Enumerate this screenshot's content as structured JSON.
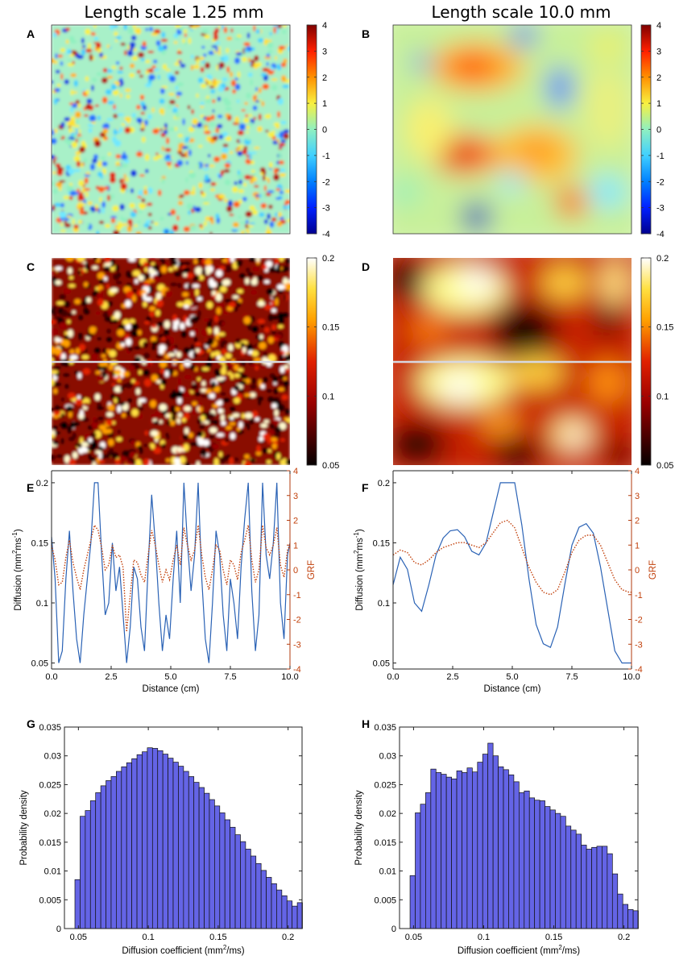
{
  "figure": {
    "col_titles": [
      "Length scale 1.25 mm",
      "Length scale 10.0 mm"
    ]
  },
  "chart_data": [
    {
      "panel": "A",
      "type": "heatmap",
      "title": "Length scale 1.25 mm",
      "description": "Gaussian random field, length scale 1.25 mm",
      "colormap": "jet",
      "colorbar_ticks": [
        "4",
        "3",
        "2",
        "1",
        "0",
        "-1",
        "-2",
        "-3",
        "-4"
      ],
      "range": [
        -4,
        4
      ],
      "length_scale_mm": 1.25
    },
    {
      "panel": "B",
      "type": "heatmap",
      "title": "Length scale 10.0 mm",
      "description": "Gaussian random field, length scale 10.0 mm",
      "colormap": "jet",
      "colorbar_ticks": [
        "4",
        "3",
        "2",
        "1",
        "0",
        "-1",
        "-2",
        "-3",
        "-4"
      ],
      "range": [
        -4,
        4
      ],
      "length_scale_mm": 10.0
    },
    {
      "panel": "C",
      "type": "heatmap",
      "description": "Diffusion map from GRF, length scale 1.25 mm",
      "colormap": "hot",
      "colorbar_ticks": [
        "0.2",
        "0.15",
        "0.1",
        "0.05"
      ],
      "range": [
        0.05,
        0.2
      ],
      "length_scale_mm": 1.25,
      "profile_line": true
    },
    {
      "panel": "D",
      "type": "heatmap",
      "description": "Diffusion map from GRF, length scale 10.0 mm",
      "colormap": "hot",
      "colorbar_ticks": [
        "0.2",
        "0.15",
        "0.1",
        "0.05"
      ],
      "range": [
        0.05,
        0.2
      ],
      "length_scale_mm": 10.0,
      "profile_line": true
    },
    {
      "panel": "E",
      "type": "line",
      "xlabel": "Distance (cm)",
      "ylabel": "Diffusion (mm",
      "ylabel_sup": "2",
      "ylabel_mid": "ms",
      "ylabel_sup2": "-1",
      "ylabel_end": ")",
      "y2label": "GRF",
      "xlim": [
        0,
        10
      ],
      "ylim": [
        0.045,
        0.21
      ],
      "y2lim": [
        -4,
        4
      ],
      "xticks": [
        "0.0",
        "2.5",
        "5.0",
        "7.5",
        "10.0"
      ],
      "yticks": [
        "0.05",
        "0.1",
        "0.15",
        "0.2"
      ],
      "y2ticks": [
        "-4",
        "-3",
        "-2",
        "-1",
        "0",
        "1",
        "2",
        "3",
        "4"
      ],
      "x": [
        0.0,
        0.15,
        0.3,
        0.45,
        0.6,
        0.75,
        0.9,
        1.05,
        1.2,
        1.35,
        1.5,
        1.65,
        1.8,
        1.95,
        2.1,
        2.25,
        2.4,
        2.55,
        2.7,
        2.85,
        3.0,
        3.15,
        3.3,
        3.45,
        3.6,
        3.75,
        3.9,
        4.05,
        4.2,
        4.35,
        4.5,
        4.65,
        4.8,
        4.95,
        5.1,
        5.25,
        5.4,
        5.55,
        5.7,
        5.85,
        6.0,
        6.15,
        6.3,
        6.45,
        6.6,
        6.75,
        6.9,
        7.05,
        7.2,
        7.35,
        7.5,
        7.65,
        7.8,
        7.95,
        8.1,
        8.25,
        8.4,
        8.55,
        8.7,
        8.85,
        9.0,
        9.15,
        9.3,
        9.45,
        9.6,
        9.75,
        9.9,
        10.0
      ],
      "series": [
        {
          "name": "Diffusion",
          "axis": "left",
          "color": "#2a62b5",
          "style": "solid",
          "values": [
            0.155,
            0.12,
            0.05,
            0.06,
            0.12,
            0.16,
            0.11,
            0.07,
            0.05,
            0.09,
            0.12,
            0.15,
            0.2,
            0.2,
            0.14,
            0.09,
            0.1,
            0.15,
            0.11,
            0.13,
            0.09,
            0.05,
            0.08,
            0.13,
            0.12,
            0.08,
            0.06,
            0.13,
            0.19,
            0.15,
            0.1,
            0.06,
            0.09,
            0.07,
            0.12,
            0.16,
            0.1,
            0.2,
            0.15,
            0.11,
            0.14,
            0.2,
            0.12,
            0.07,
            0.05,
            0.1,
            0.16,
            0.14,
            0.09,
            0.06,
            0.12,
            0.1,
            0.07,
            0.13,
            0.17,
            0.2,
            0.11,
            0.06,
            0.09,
            0.2,
            0.14,
            0.12,
            0.15,
            0.2,
            0.1,
            0.07,
            0.14,
            0.15
          ]
        },
        {
          "name": "GRF",
          "axis": "right",
          "color": "#c2410c",
          "style": "dotted",
          "values": [
            1.0,
            0.4,
            -0.6,
            -0.5,
            0.5,
            1.2,
            0.3,
            -0.3,
            -0.8,
            0.0,
            0.6,
            1.2,
            1.8,
            1.6,
            0.9,
            0.0,
            0.2,
            1.0,
            0.5,
            0.6,
            0.1,
            -2.5,
            -1.0,
            0.4,
            0.3,
            -0.2,
            -0.5,
            0.6,
            1.6,
            1.0,
            0.2,
            -0.5,
            0.0,
            -0.4,
            0.4,
            1.0,
            0.2,
            1.7,
            1.0,
            0.4,
            0.8,
            1.8,
            0.6,
            -0.3,
            -0.8,
            0.0,
            1.0,
            0.8,
            0.0,
            -0.6,
            0.4,
            0.2,
            -0.4,
            0.7,
            1.2,
            1.8,
            0.4,
            -0.5,
            0.0,
            1.8,
            0.9,
            0.6,
            1.0,
            1.7,
            0.2,
            -0.3,
            0.8,
            1.0
          ]
        }
      ]
    },
    {
      "panel": "F",
      "type": "line",
      "xlabel": "Distance (cm)",
      "ylabel": "Diffusion (mm",
      "ylabel_sup": "2",
      "ylabel_mid": "ms",
      "ylabel_sup2": "-1",
      "ylabel_end": ")",
      "y2label": "GRF",
      "xlim": [
        0,
        10
      ],
      "ylim": [
        0.045,
        0.21
      ],
      "y2lim": [
        -4,
        4
      ],
      "xticks": [
        "0.0",
        "2.5",
        "5.0",
        "7.5",
        "10.0"
      ],
      "yticks": [
        "0.05",
        "0.1",
        "0.15",
        "0.2"
      ],
      "y2ticks": [
        "-4",
        "-3",
        "-2",
        "-1",
        "0",
        "1",
        "2",
        "3",
        "4"
      ],
      "x": [
        0.0,
        0.3,
        0.6,
        0.9,
        1.2,
        1.5,
        1.8,
        2.1,
        2.4,
        2.7,
        3.0,
        3.3,
        3.6,
        3.9,
        4.2,
        4.5,
        4.8,
        5.1,
        5.4,
        5.7,
        6.0,
        6.3,
        6.6,
        6.9,
        7.2,
        7.5,
        7.8,
        8.1,
        8.4,
        8.7,
        9.0,
        9.3,
        9.6,
        9.9,
        10.0
      ],
      "series": [
        {
          "name": "Diffusion",
          "axis": "left",
          "color": "#2a62b5",
          "style": "solid",
          "values": [
            0.115,
            0.138,
            0.128,
            0.1,
            0.093,
            0.115,
            0.14,
            0.154,
            0.16,
            0.161,
            0.155,
            0.143,
            0.14,
            0.15,
            0.175,
            0.2,
            0.2,
            0.2,
            0.165,
            0.12,
            0.082,
            0.066,
            0.063,
            0.08,
            0.115,
            0.148,
            0.163,
            0.166,
            0.158,
            0.13,
            0.095,
            0.06,
            0.05,
            0.05,
            0.05
          ]
        },
        {
          "name": "GRF",
          "axis": "right",
          "color": "#c2410c",
          "style": "dotted",
          "values": [
            0.6,
            0.8,
            0.7,
            0.3,
            0.2,
            0.4,
            0.7,
            0.9,
            1.0,
            1.1,
            1.1,
            1.0,
            0.9,
            1.1,
            1.5,
            1.9,
            2.0,
            1.7,
            0.9,
            0.1,
            -0.5,
            -0.9,
            -1.0,
            -0.8,
            -0.1,
            0.7,
            1.2,
            1.4,
            1.4,
            1.0,
            0.3,
            -0.4,
            -0.8,
            -0.9,
            -0.9
          ]
        }
      ]
    },
    {
      "panel": "G",
      "type": "bar",
      "xlabel": "Diffusion coefficient (mm",
      "xlabel_sup": "2",
      "xlabel_end": "/ms)",
      "ylabel": "Probability density",
      "xlim": [
        0.04,
        0.21
      ],
      "ylim": [
        0,
        0.035
      ],
      "xticks": [
        "0.05",
        "0.1",
        "0.15",
        "0.2"
      ],
      "yticks": [
        "0",
        "0.005",
        "0.01",
        "0.015",
        "0.02",
        "0.025",
        "0.03",
        "0.035"
      ],
      "bin_start": 0.0475,
      "bin_width": 0.0037,
      "color": "#6464e6",
      "values": [
        0.0085,
        0.0195,
        0.0205,
        0.0222,
        0.0236,
        0.0248,
        0.0257,
        0.0264,
        0.0273,
        0.0281,
        0.0288,
        0.0295,
        0.0302,
        0.0307,
        0.0314,
        0.0313,
        0.0309,
        0.0303,
        0.0296,
        0.0289,
        0.0282,
        0.0273,
        0.0264,
        0.0254,
        0.0245,
        0.0235,
        0.0224,
        0.0213,
        0.0201,
        0.0189,
        0.0176,
        0.0163,
        0.0151,
        0.0138,
        0.0126,
        0.0113,
        0.0101,
        0.0089,
        0.0078,
        0.0067,
        0.0057,
        0.0048,
        0.0039,
        0.0045
      ]
    },
    {
      "panel": "H",
      "type": "bar",
      "xlabel": "Diffusion coefficient (mm",
      "xlabel_sup": "2",
      "xlabel_end": "/ms)",
      "ylabel": "Probability density",
      "xlim": [
        0.04,
        0.21
      ],
      "ylim": [
        0,
        0.035
      ],
      "xticks": [
        "0.05",
        "0.1",
        "0.15",
        "0.2"
      ],
      "yticks": [
        "0",
        "0.005",
        "0.01",
        "0.015",
        "0.02",
        "0.025",
        "0.03",
        "0.035"
      ],
      "bin_start": 0.0475,
      "bin_width": 0.0037,
      "color": "#6464e6",
      "values": [
        0.0092,
        0.0201,
        0.0216,
        0.0236,
        0.0277,
        0.0271,
        0.0268,
        0.0263,
        0.026,
        0.0274,
        0.0271,
        0.0279,
        0.0272,
        0.0289,
        0.0303,
        0.0322,
        0.03,
        0.0281,
        0.0276,
        0.0267,
        0.0255,
        0.0236,
        0.0239,
        0.0227,
        0.0223,
        0.0222,
        0.0212,
        0.0206,
        0.02,
        0.0195,
        0.0178,
        0.0171,
        0.0164,
        0.0145,
        0.0138,
        0.0141,
        0.0143,
        0.0143,
        0.013,
        0.0095,
        0.006,
        0.0042,
        0.0033,
        0.0031
      ]
    }
  ]
}
